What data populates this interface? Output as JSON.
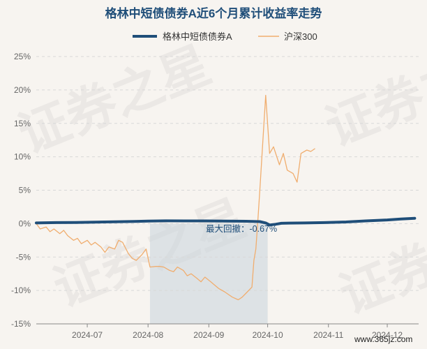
{
  "chart_data": {
    "type": "line",
    "title": "格林中短债债券A近6个月累计收益率走势",
    "xlabel": "",
    "ylabel": "",
    "x_start": "2024-06-05",
    "x_end": "2024-10-25",
    "x_ticks": [
      "2024-07",
      "2024-08",
      "2024-09",
      "2024-10",
      "2024-11",
      "2024-12"
    ],
    "x_tick_dates": [
      "2024-07-01",
      "2024-08-01",
      "2024-09-01",
      "2024-10-01",
      "2024-11-01",
      "2024-12-01"
    ],
    "ylim": [
      -15,
      25
    ],
    "y_ticks": [
      25,
      20,
      15,
      10,
      5,
      0,
      -5,
      -10,
      -15
    ],
    "y_tick_labels": [
      "25%",
      "20%",
      "15%",
      "10%",
      "5%",
      "0%",
      "-5%",
      "-10%",
      "-15%"
    ],
    "grid": true,
    "legend_position": "top",
    "series": [
      {
        "name": "格林中短债债券A",
        "color": "#1f4e79",
        "points": [
          [
            "2024-06-05",
            0.1
          ],
          [
            "2024-06-15",
            0.15
          ],
          [
            "2024-06-25",
            0.18
          ],
          [
            "2024-07-05",
            0.22
          ],
          [
            "2024-07-15",
            0.28
          ],
          [
            "2024-07-25",
            0.32
          ],
          [
            "2024-08-01",
            0.38
          ],
          [
            "2024-08-10",
            0.42
          ],
          [
            "2024-08-20",
            0.4
          ],
          [
            "2024-08-30",
            0.4
          ],
          [
            "2024-09-10",
            0.38
          ],
          [
            "2024-09-20",
            0.35
          ],
          [
            "2024-09-27",
            0.3
          ],
          [
            "2024-09-30",
            0.1
          ],
          [
            "2024-10-02",
            -0.2
          ],
          [
            "2024-10-05",
            -0.1
          ],
          [
            "2024-10-08",
            0.05
          ],
          [
            "2024-10-12",
            0.08
          ],
          [
            "2024-10-20",
            0.1
          ],
          [
            "2024-10-30",
            0.15
          ],
          [
            "2024-11-10",
            0.25
          ],
          [
            "2024-11-20",
            0.4
          ],
          [
            "2024-12-01",
            0.55
          ],
          [
            "2024-12-08",
            0.7
          ],
          [
            "2024-12-15",
            0.8
          ]
        ]
      },
      {
        "name": "沪深300",
        "color": "#f0ad6e",
        "points": [
          [
            "2024-06-05",
            0.0
          ],
          [
            "2024-06-07",
            -0.8
          ],
          [
            "2024-06-10",
            -0.5
          ],
          [
            "2024-06-12",
            -1.2
          ],
          [
            "2024-06-14",
            -0.8
          ],
          [
            "2024-06-17",
            -1.5
          ],
          [
            "2024-06-19",
            -1.0
          ],
          [
            "2024-06-21",
            -1.8
          ],
          [
            "2024-06-24",
            -2.5
          ],
          [
            "2024-06-26",
            -2.2
          ],
          [
            "2024-06-28",
            -3.0
          ],
          [
            "2024-07-01",
            -2.5
          ],
          [
            "2024-07-03",
            -3.2
          ],
          [
            "2024-07-05",
            -2.8
          ],
          [
            "2024-07-08",
            -3.5
          ],
          [
            "2024-07-10",
            -4.3
          ],
          [
            "2024-07-12",
            -3.5
          ],
          [
            "2024-07-15",
            -3.8
          ],
          [
            "2024-07-17",
            -2.5
          ],
          [
            "2024-07-19",
            -2.8
          ],
          [
            "2024-07-22",
            -4.5
          ],
          [
            "2024-07-24",
            -5.2
          ],
          [
            "2024-07-26",
            -5.5
          ],
          [
            "2024-07-29",
            -4.6
          ],
          [
            "2024-07-31",
            -3.8
          ],
          [
            "2024-08-02",
            -6.5
          ],
          [
            "2024-08-05",
            -6.4
          ],
          [
            "2024-08-07",
            -6.4
          ],
          [
            "2024-08-09",
            -6.5
          ],
          [
            "2024-08-12",
            -7.0
          ],
          [
            "2024-08-14",
            -7.2
          ],
          [
            "2024-08-16",
            -6.5
          ],
          [
            "2024-08-19",
            -7.0
          ],
          [
            "2024-08-21",
            -7.8
          ],
          [
            "2024-08-23",
            -7.5
          ],
          [
            "2024-08-26",
            -8.2
          ],
          [
            "2024-08-28",
            -8.7
          ],
          [
            "2024-08-30",
            -8.0
          ],
          [
            "2024-09-02",
            -8.7
          ],
          [
            "2024-09-04",
            -9.2
          ],
          [
            "2024-09-06",
            -9.7
          ],
          [
            "2024-09-09",
            -10.2
          ],
          [
            "2024-09-11",
            -10.6
          ],
          [
            "2024-09-13",
            -11.0
          ],
          [
            "2024-09-16",
            -11.4
          ],
          [
            "2024-09-18",
            -11.0
          ],
          [
            "2024-09-20",
            -10.4
          ],
          [
            "2024-09-23",
            -9.5
          ],
          [
            "2024-09-24",
            -5.5
          ],
          [
            "2024-09-25",
            -3.8
          ],
          [
            "2024-09-26",
            0.5
          ],
          [
            "2024-09-27",
            5.0
          ],
          [
            "2024-09-30",
            19.2
          ],
          [
            "2024-10-02",
            10.5
          ],
          [
            "2024-10-04",
            11.5
          ],
          [
            "2024-10-07",
            8.8
          ],
          [
            "2024-10-09",
            10.5
          ],
          [
            "2024-10-11",
            8.0
          ],
          [
            "2024-10-14",
            7.5
          ],
          [
            "2024-10-16",
            6.2
          ],
          [
            "2024-10-18",
            10.5
          ],
          [
            "2024-10-21",
            11.0
          ],
          [
            "2024-10-23",
            10.8
          ],
          [
            "2024-10-25",
            11.2
          ]
        ]
      }
    ],
    "annotation": {
      "text": "最大回撤：-0.67%",
      "shade_from": "2024-08-02",
      "shade_to": "2024-10-01"
    },
    "watermark": "证券之星"
  },
  "footer": {
    "site": "www.365jz.com"
  }
}
